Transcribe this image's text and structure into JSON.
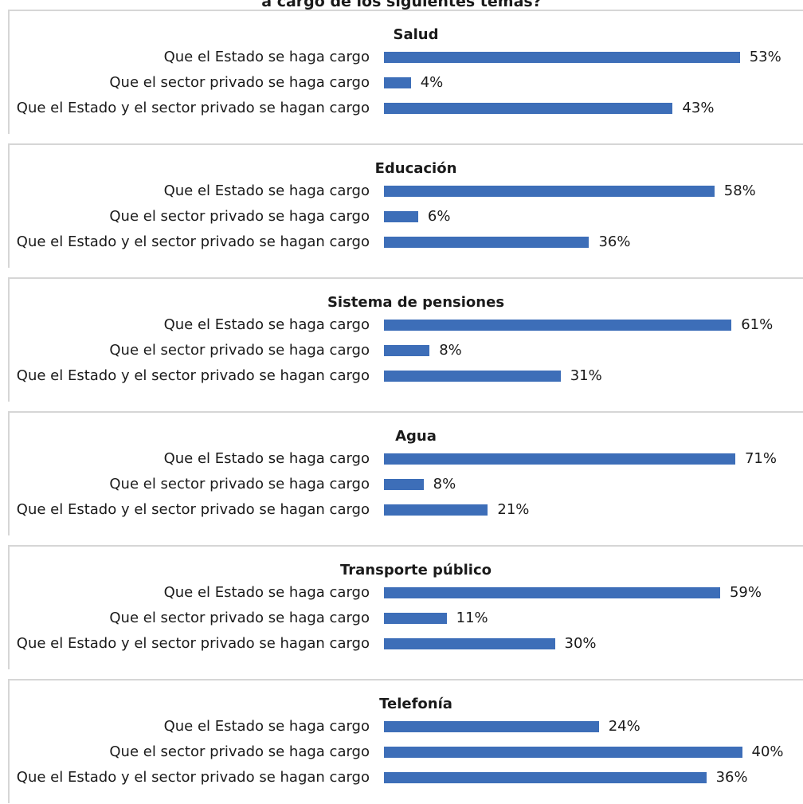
{
  "title": "a cargo de los siguientes temas?",
  "colors": {
    "bar": "#3d6eb8",
    "border": "#d6d6d6"
  },
  "chart_data": [
    {
      "type": "bar",
      "orientation": "horizontal",
      "title": "Salud",
      "categories": [
        "Que el Estado se haga cargo",
        "Que el sector privado se haga cargo",
        "Que el Estado y el sector privado se hagan cargo"
      ],
      "values": [
        53,
        4,
        43
      ],
      "value_labels": [
        "53%",
        "4%",
        "43%"
      ],
      "unit": "%",
      "xlim": [
        0,
        56
      ]
    },
    {
      "type": "bar",
      "orientation": "horizontal",
      "title": "Educación",
      "categories": [
        "Que el Estado se haga cargo",
        "Que el sector privado se haga cargo",
        "Que el Estado y el sector privado se hagan cargo"
      ],
      "values": [
        58,
        6,
        36
      ],
      "value_labels": [
        "58%",
        "6%",
        "36%"
      ],
      "unit": "%",
      "xlim": [
        0,
        66
      ]
    },
    {
      "type": "bar",
      "orientation": "horizontal",
      "title": "Sistema de pensiones",
      "categories": [
        "Que el Estado se haga cargo",
        "Que el sector privado se haga cargo",
        "Que el Estado y el sector privado se hagan cargo"
      ],
      "values": [
        61,
        8,
        31
      ],
      "value_labels": [
        "61%",
        "8%",
        "31%"
      ],
      "unit": "%",
      "xlim": [
        0,
        66
      ]
    },
    {
      "type": "bar",
      "orientation": "horizontal",
      "title": "Agua",
      "categories": [
        "Que el Estado se haga cargo",
        "Que el sector privado se haga cargo",
        "Que el Estado y el sector privado se hagan cargo"
      ],
      "values": [
        71,
        8,
        21
      ],
      "value_labels": [
        "71%",
        "8%",
        "21%"
      ],
      "unit": "%",
      "xlim": [
        0,
        76
      ]
    },
    {
      "type": "bar",
      "orientation": "horizontal",
      "title": "Transporte público",
      "categories": [
        "Que el Estado se haga cargo",
        "Que el sector privado se haga cargo",
        "Que el Estado y el sector privado se hagan cargo"
      ],
      "values": [
        59,
        11,
        30
      ],
      "value_labels": [
        "59%",
        "11%",
        "30%"
      ],
      "unit": "%",
      "xlim": [
        0,
        66
      ]
    },
    {
      "type": "bar",
      "orientation": "horizontal",
      "title": "Telefonía",
      "categories": [
        "Que el Estado se haga cargo",
        "Que el sector privado se haga cargo",
        "Que el Estado y el sector privado se hagan cargo"
      ],
      "values": [
        24,
        40,
        36
      ],
      "value_labels": [
        "24%",
        "40%",
        "36%"
      ],
      "unit": "%",
      "xlim": [
        0,
        42
      ]
    }
  ]
}
